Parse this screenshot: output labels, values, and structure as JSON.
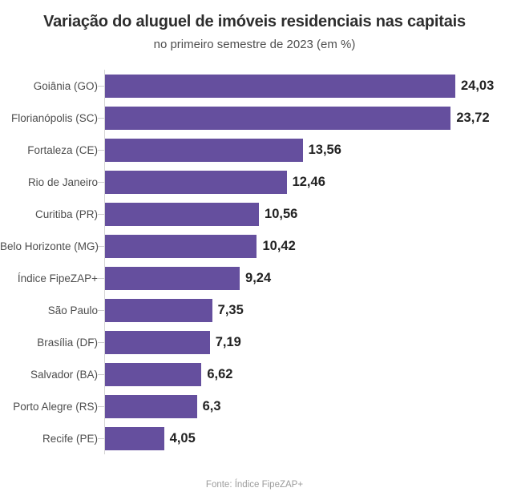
{
  "header": {
    "title": "Variação do aluguel de imóveis residenciais nas capitais",
    "subtitle": "no primeiro semestre de 2023 (em %)"
  },
  "chart_data": {
    "type": "bar",
    "orientation": "horizontal",
    "title": "Variação do aluguel de imóveis residenciais nas capitais",
    "subtitle": "no primeiro semestre de 2023 (em %)",
    "categories": [
      "Goiânia (GO)",
      "Florianópolis (SC)",
      "Fortaleza (CE)",
      "Rio de Janeiro",
      "Curitiba (PR)",
      "Belo Horizonte (MG)",
      "Índice FipeZAP+",
      "São Paulo",
      "Brasília (DF)",
      "Salvador (BA)",
      "Porto Alegre (RS)",
      "Recife (PE)"
    ],
    "values": [
      24.03,
      23.72,
      13.56,
      12.46,
      10.56,
      10.42,
      9.24,
      7.35,
      7.19,
      6.62,
      6.3,
      4.05
    ],
    "value_labels": [
      "24,03",
      "23,72",
      "13,56",
      "12,46",
      "10,56",
      "10,42",
      "9,24",
      "7,35",
      "7,19",
      "6,62",
      "6,3",
      "4,05"
    ],
    "xlim": [
      0,
      24.03
    ],
    "grid": false,
    "legend": "none",
    "bar_color": "#654f9e",
    "xlabel": "",
    "ylabel": ""
  },
  "footer": {
    "source": "Fonte: Índice FipeZAP+"
  },
  "colors": {
    "bar": "#654f9e",
    "title_text": "#2d2d2d",
    "subtitle_text": "#4e4e4e",
    "label_text": "#4d4d4d",
    "value_text": "#222222",
    "axis_line": "#d6d6d6",
    "source_text": "#9c9c9c",
    "background": "#ffffff"
  }
}
